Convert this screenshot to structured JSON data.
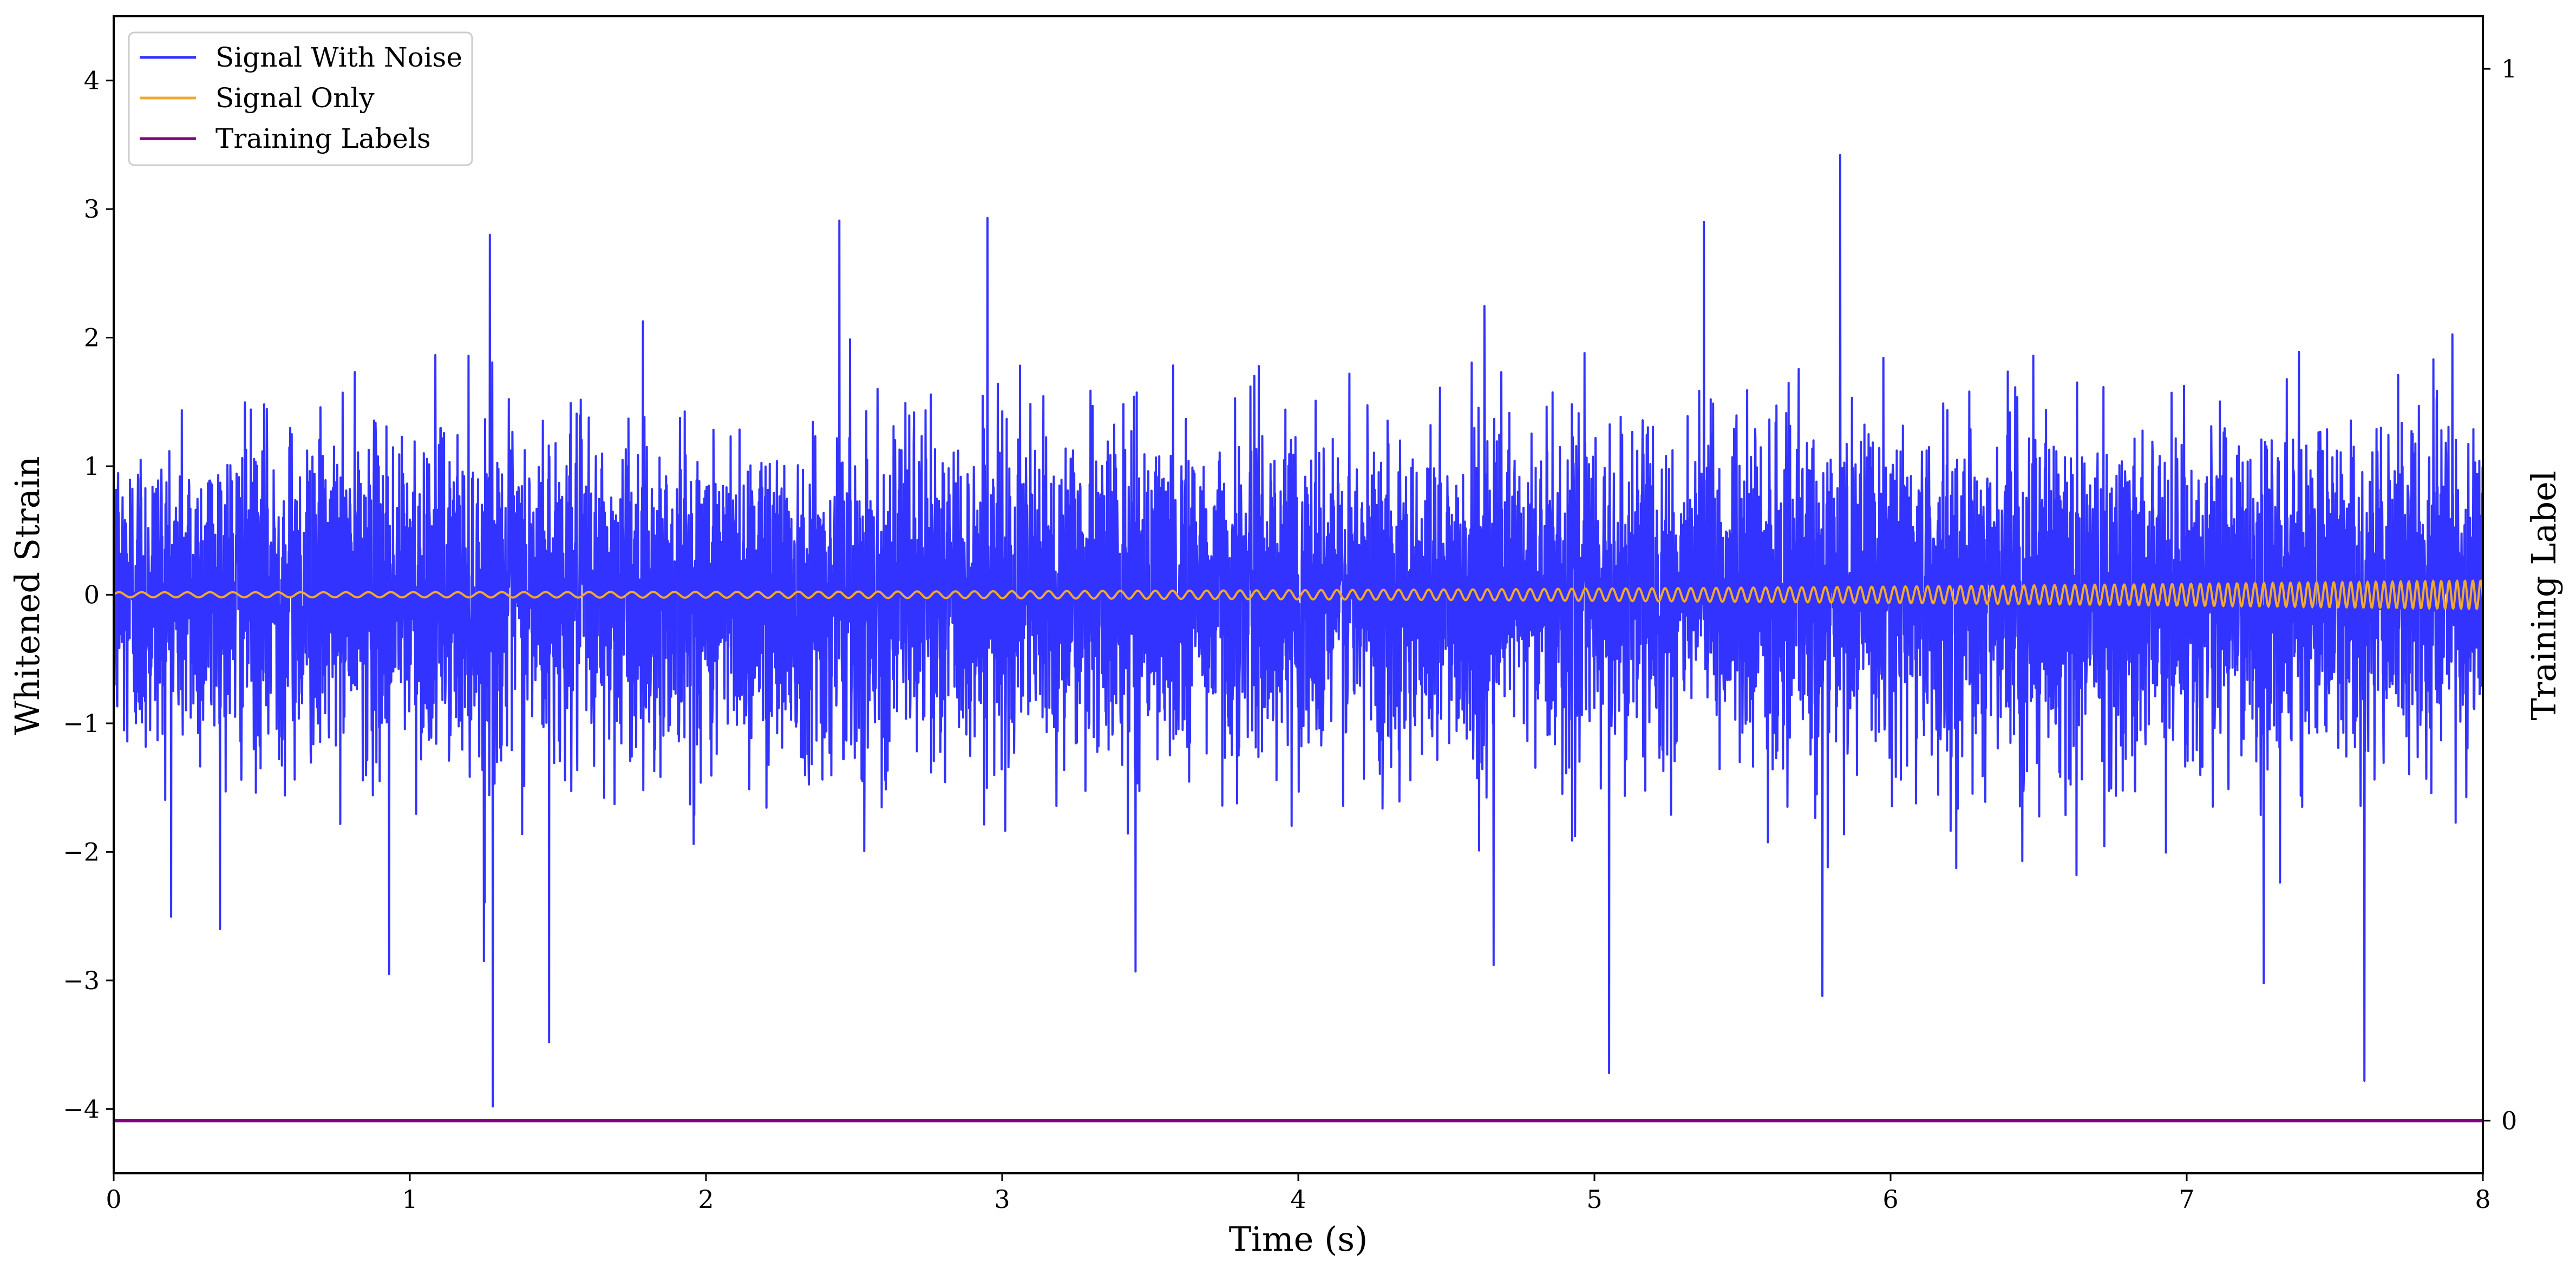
{
  "chart_data": {
    "type": "line",
    "title": "",
    "xlabel": "Time (s)",
    "ylabel": "Whitened Strain",
    "y2label": "Training Label",
    "xlim": [
      0,
      8
    ],
    "ylim": [
      -4.5,
      4.5
    ],
    "y2lim": [
      -0.05,
      1.05
    ],
    "xticks": [
      0,
      1,
      2,
      3,
      4,
      5,
      6,
      7,
      8
    ],
    "xtick_labels": [
      "0",
      "1",
      "2",
      "3",
      "4",
      "5",
      "6",
      "7",
      "8"
    ],
    "yticks": [
      4,
      3,
      2,
      1,
      0,
      -1,
      -2,
      -3,
      -4
    ],
    "ytick_labels": [
      "4",
      "3",
      "2",
      "1",
      "0",
      "−1",
      "−2",
      "−3",
      "−4"
    ],
    "y2ticks": [
      1,
      0
    ],
    "y2tick_labels": [
      "1",
      "0"
    ],
    "grid": false,
    "legend_position": "top-left",
    "series": [
      {
        "name": "Signal With Noise",
        "axis": "left",
        "color": "#3333ff",
        "description_stats": {
          "typical_range": [
            -1.8,
            2.0
          ],
          "peak_values": [
            {
              "x": 1.28,
              "y": -3.98
            },
            {
              "x": 5.83,
              "y": 3.42
            },
            {
              "x": 5.05,
              "y": -3.72
            },
            {
              "x": 7.6,
              "y": -3.78
            },
            {
              "x": 1.47,
              "y": -3.48
            },
            {
              "x": 5.77,
              "y": -3.12
            },
            {
              "x": 2.95,
              "y": 2.93
            },
            {
              "x": 2.45,
              "y": 2.91
            },
            {
              "x": 5.37,
              "y": 2.9
            },
            {
              "x": 1.27,
              "y": 2.8
            },
            {
              "x": 0.93,
              "y": -2.95
            },
            {
              "x": 3.45,
              "y": -2.93
            },
            {
              "x": 7.26,
              "y": -3.02
            },
            {
              "x": 4.66,
              "y": -2.88
            },
            {
              "x": 1.25,
              "y": -2.85
            }
          ]
        }
      },
      {
        "name": "Signal Only",
        "axis": "left",
        "color": "#f0a830",
        "chirp": {
          "f_start_hz": 13,
          "f_end_hz": 38,
          "amp_start": 0.02,
          "amp_end": 0.11
        }
      },
      {
        "name": "Training Labels",
        "axis": "right",
        "color": "#800080",
        "x": [
          0,
          8
        ],
        "values": [
          0,
          0
        ]
      }
    ]
  }
}
